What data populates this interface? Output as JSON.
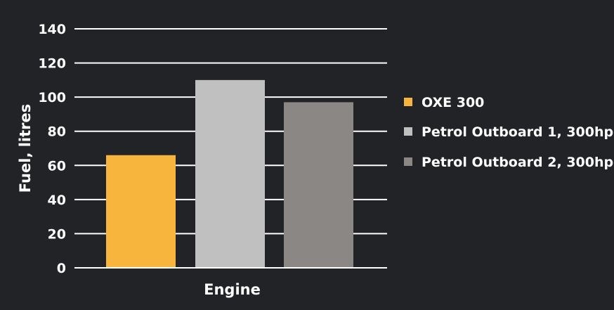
{
  "chart_data": {
    "type": "bar",
    "title": "",
    "xlabel": "Engine",
    "ylabel": "Fuel, litres",
    "ylim": [
      0,
      140
    ],
    "yticks": [
      0,
      20,
      40,
      60,
      80,
      100,
      120,
      140
    ],
    "grid": true,
    "legend_position": "right",
    "series": [
      {
        "name": "OXE 300",
        "value": 66,
        "color": "#f8b53d"
      },
      {
        "name": "Petrol Outboard 1, 300hp",
        "value": 110,
        "color": "#c0c0c0"
      },
      {
        "name": "Petrol Outboard 2, 300hp",
        "value": 97,
        "color": "#8a8785"
      }
    ],
    "colors": {
      "background": "#222326",
      "gridline": "#ffffff",
      "text": "#ffffff"
    }
  }
}
